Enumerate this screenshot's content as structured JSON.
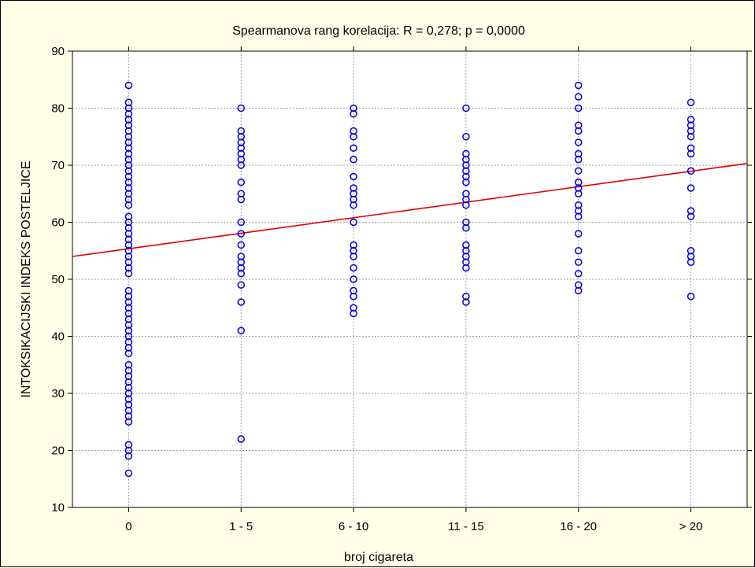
{
  "chart_data": {
    "type": "scatter",
    "title": "Spearmanova rang korelacija: R = 0,278; p = 0,0000",
    "xlabel": "broj cigareta",
    "ylabel": "INTOKSIKACIJSKI INDEKS POSTELJICE",
    "categories": [
      "0",
      "1 - 5",
      "6 - 10",
      "11 - 15",
      "16 - 20",
      "> 20"
    ],
    "ylim": [
      10,
      90
    ],
    "yticks": [
      10,
      20,
      30,
      40,
      50,
      60,
      70,
      80,
      90
    ],
    "grid": true,
    "colors": {
      "points": "#0000CC",
      "fit_line": "#E00000",
      "background": "#FFFFE8",
      "plot_background": "#FFFFFF",
      "grid": "#A0A0A0"
    },
    "series": [
      {
        "category": "0",
        "values": [
          84,
          81,
          80,
          79,
          78,
          77,
          76,
          75,
          74,
          73,
          72,
          71,
          70,
          69,
          68,
          67,
          66,
          65,
          64,
          63,
          61,
          60,
          59,
          58,
          57,
          56,
          55,
          54,
          53,
          52,
          51,
          48,
          47,
          46,
          45,
          44,
          43,
          42,
          41,
          40,
          39,
          38,
          37,
          35,
          34,
          33,
          32,
          31,
          30,
          29,
          28,
          27,
          26,
          25,
          21,
          20,
          19,
          16
        ]
      },
      {
        "category": "1 - 5",
        "values": [
          80,
          76,
          75,
          74,
          73,
          72,
          71,
          70,
          67,
          65,
          64,
          60,
          58,
          56,
          54,
          53,
          52,
          51,
          49,
          46,
          41,
          22
        ]
      },
      {
        "category": "6 - 10",
        "values": [
          80,
          79,
          76,
          75,
          73,
          71,
          68,
          66,
          65,
          64,
          63,
          60,
          56,
          55,
          54,
          52,
          50,
          48,
          47,
          45,
          44
        ]
      },
      {
        "category": "11 - 15",
        "values": [
          80,
          75,
          72,
          71,
          70,
          69,
          68,
          67,
          65,
          64,
          63,
          60,
          59,
          56,
          55,
          54,
          53,
          52,
          47,
          46
        ]
      },
      {
        "category": "16 - 20",
        "values": [
          84,
          82,
          80,
          77,
          76,
          74,
          72,
          71,
          69,
          67,
          66,
          65,
          63,
          62,
          61,
          58,
          55,
          53,
          51,
          49,
          48
        ]
      },
      {
        "category": "> 20",
        "values": [
          81,
          78,
          77,
          76,
          75,
          73,
          72,
          69,
          66,
          62,
          61,
          55,
          54,
          53,
          47
        ]
      }
    ],
    "fit_line": {
      "y_at_start": 54,
      "y_at_end": 70.3,
      "x_start": -0.5,
      "x_end": 5.5
    }
  }
}
